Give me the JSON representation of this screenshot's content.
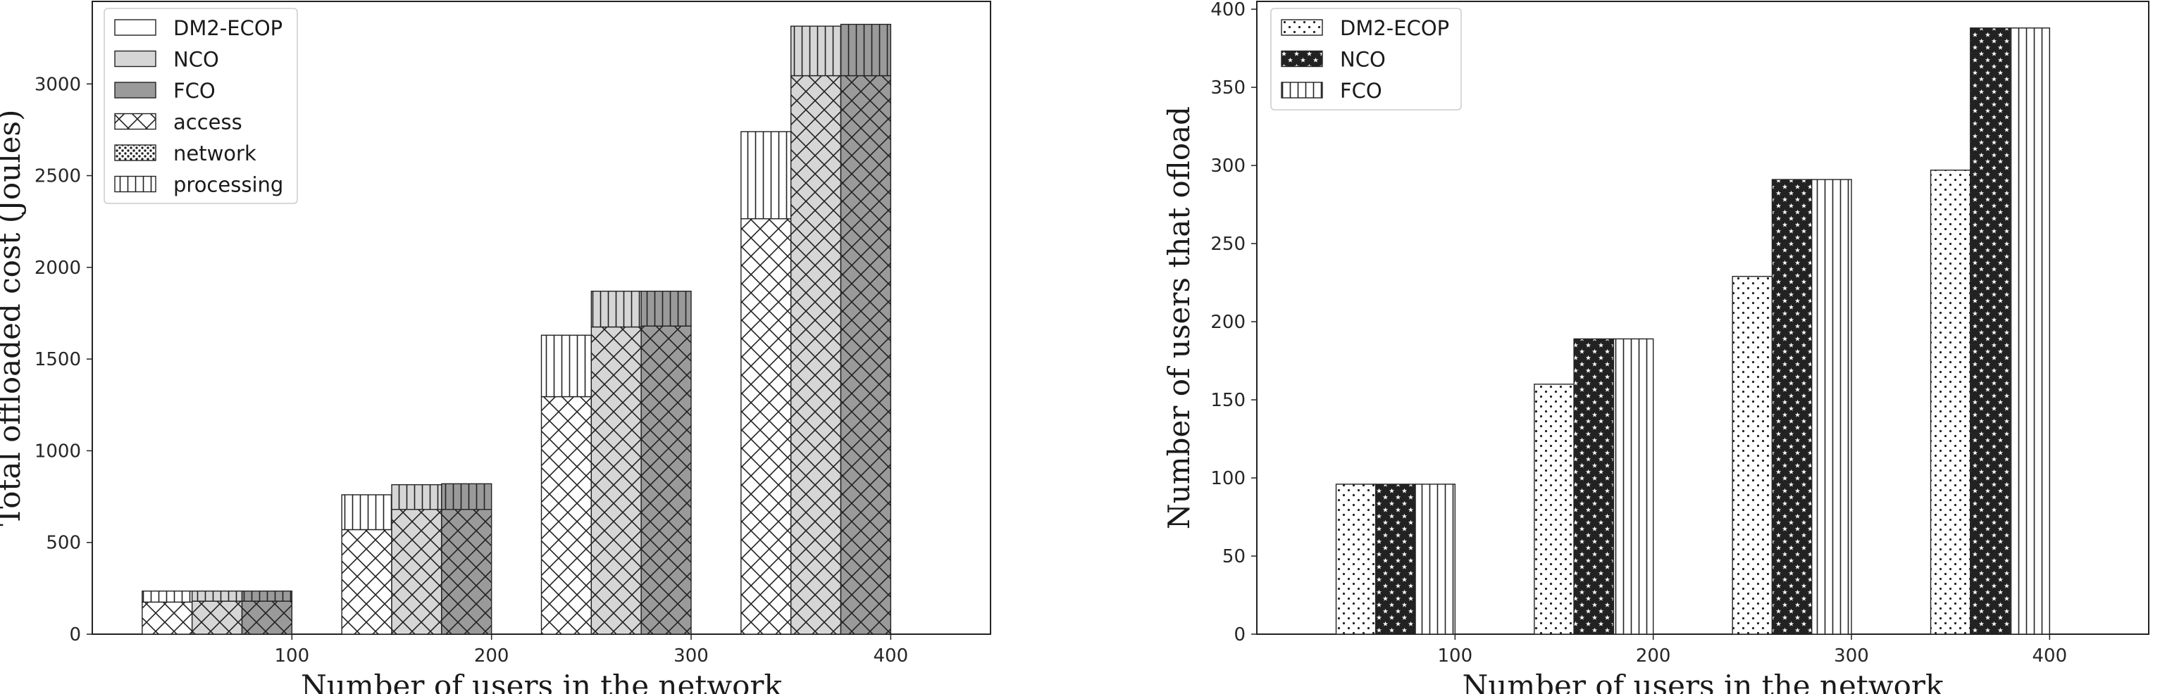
{
  "chart_data": [
    {
      "type": "bar",
      "subtype": "stacked-grouped",
      "title": "",
      "xlabel": "Number of users in the network",
      "ylabel": "Total offloaded cost (Joules)",
      "categories": [
        "100",
        "200",
        "300",
        "400"
      ],
      "ylim": [
        0,
        3450
      ],
      "yticks": [
        0,
        500,
        1000,
        1500,
        2000,
        2500,
        3000
      ],
      "xlim": [
        0,
        450
      ],
      "xticks": [
        100,
        200,
        300,
        400
      ],
      "series": [
        {
          "name": "DM2-ECOP",
          "color": "#ffffff",
          "access": [
            175,
            570,
            1295,
            2265
          ],
          "network": [
            0,
            0,
            0,
            0
          ],
          "processing": [
            60,
            190,
            335,
            475
          ]
        },
        {
          "name": "NCO",
          "color": "#d6d6d6",
          "access": [
            180,
            680,
            1675,
            3045
          ],
          "network": [
            0,
            0,
            0,
            0
          ],
          "processing": [
            55,
            135,
            195,
            270
          ]
        },
        {
          "name": "FCO",
          "color": "#9a9a9a",
          "access": [
            180,
            680,
            1680,
            3045
          ],
          "network": [
            0,
            0,
            0,
            0
          ],
          "processing": [
            55,
            140,
            190,
            280
          ]
        }
      ],
      "legend": {
        "placement": "top-left",
        "entries": [
          {
            "label": "DM2-ECOP",
            "kind": "color",
            "ref": "DM2-ECOP"
          },
          {
            "label": "NCO",
            "kind": "color",
            "ref": "NCO"
          },
          {
            "label": "FCO",
            "kind": "color",
            "ref": "FCO"
          },
          {
            "label": "access",
            "kind": "hatch",
            "ref": "access"
          },
          {
            "label": "network",
            "kind": "hatch",
            "ref": "network"
          },
          {
            "label": "processing",
            "kind": "hatch",
            "ref": "processing"
          }
        ]
      }
    },
    {
      "type": "bar",
      "subtype": "grouped",
      "title": "",
      "xlabel": "Number of users in the network",
      "ylabel": "Number of users that ofload",
      "categories": [
        "100",
        "200",
        "300",
        "400"
      ],
      "ylim": [
        0,
        405
      ],
      "yticks": [
        0,
        50,
        100,
        150,
        200,
        250,
        300,
        350,
        400
      ],
      "xlim": [
        0,
        450
      ],
      "xticks": [
        100,
        200,
        300,
        400
      ],
      "series": [
        {
          "name": "DM2-ECOP",
          "hatch": "dots",
          "values": [
            96,
            160,
            229,
            297
          ]
        },
        {
          "name": "NCO",
          "hatch": "stars",
          "values": [
            96,
            189,
            291,
            388
          ]
        },
        {
          "name": "FCO",
          "hatch": "vertical",
          "values": [
            96,
            189,
            291,
            388
          ]
        }
      ],
      "legend": {
        "placement": "top-left"
      }
    }
  ]
}
